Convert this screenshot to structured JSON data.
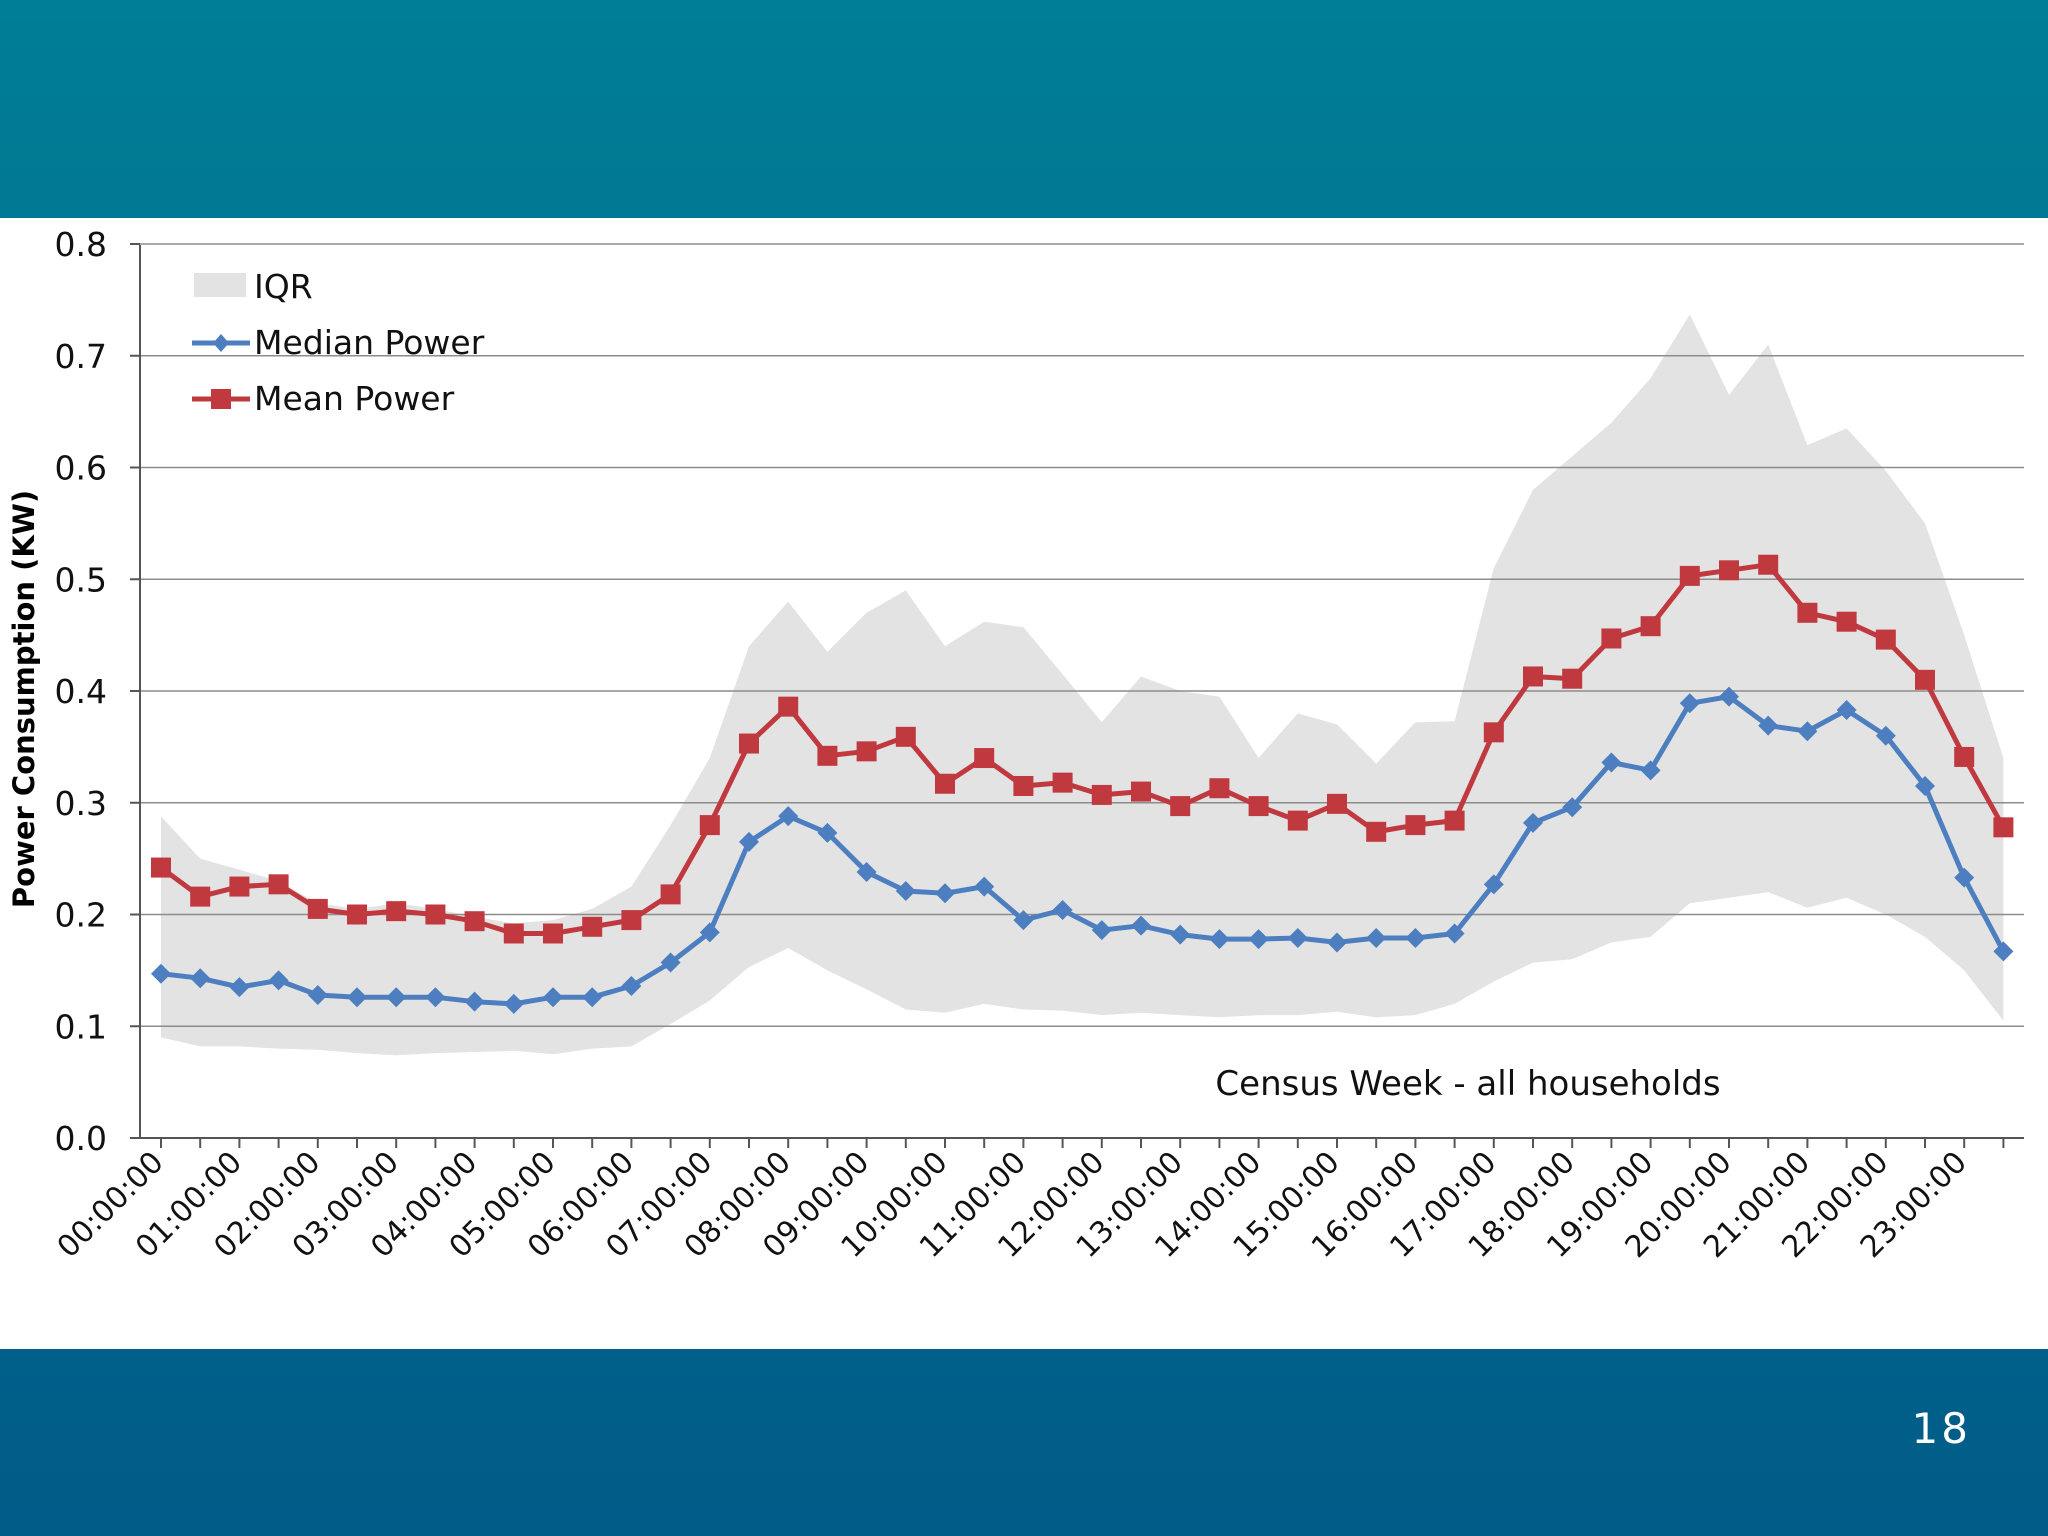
{
  "slide": {
    "number": "18"
  },
  "colors": {
    "top_band": "#007e97",
    "bottom_band": "#005c87",
    "median": "#4d7ebf",
    "mean": "#c0393f",
    "iqr": "#e3e3e3",
    "grid": "#8c8c8c"
  },
  "chart_data": {
    "type": "line",
    "title": "",
    "annotation": "Census Week - all households",
    "xlabel": "",
    "ylabel": "Power Consumption (KW)",
    "ylim": [
      0,
      0.8
    ],
    "y_ticks": [
      "0.0",
      "0.1",
      "0.2",
      "0.3",
      "0.4",
      "0.5",
      "0.6",
      "0.7",
      "0.8"
    ],
    "x_tick_labels": [
      "00:00:00",
      "01:00:00",
      "02:00:00",
      "03:00:00",
      "04:00:00",
      "05:00:00",
      "06:00:00",
      "07:00:00",
      "08:00:00",
      "09:00:00",
      "10:00:00",
      "11:00:00",
      "12:00:00",
      "13:00:00",
      "14:00:00",
      "15:00:00",
      "16:00:00",
      "17:00:00",
      "18:00:00",
      "19:00:00",
      "20:00:00",
      "21:00:00",
      "22:00:00",
      "23:00:00"
    ],
    "x_step_hours": 0.5,
    "legend": [
      "IQR",
      "Median Power",
      "Mean Power"
    ],
    "series": [
      {
        "name": "Median Power",
        "values": [
          0.147,
          0.143,
          0.135,
          0.141,
          0.128,
          0.126,
          0.126,
          0.126,
          0.122,
          0.12,
          0.126,
          0.126,
          0.136,
          0.157,
          0.184,
          0.265,
          0.288,
          0.273,
          0.238,
          0.221,
          0.219,
          0.225,
          0.195,
          0.204,
          0.186,
          0.19,
          0.182,
          0.178,
          0.178,
          0.179,
          0.175,
          0.179,
          0.179,
          0.183,
          0.227,
          0.282,
          0.296,
          0.336,
          0.329,
          0.389,
          0.395,
          0.369,
          0.364,
          0.383,
          0.36,
          0.315,
          0.233,
          0.167
        ]
      },
      {
        "name": "Mean Power",
        "values": [
          0.242,
          0.216,
          0.225,
          0.227,
          0.205,
          0.2,
          0.203,
          0.2,
          0.194,
          0.183,
          0.183,
          0.189,
          0.195,
          0.218,
          0.28,
          0.353,
          0.386,
          0.342,
          0.346,
          0.359,
          0.317,
          0.34,
          0.315,
          0.318,
          0.307,
          0.31,
          0.297,
          0.313,
          0.297,
          0.284,
          0.299,
          0.274,
          0.28,
          0.284,
          0.363,
          0.413,
          0.411,
          0.447,
          0.458,
          0.503,
          0.508,
          0.513,
          0.47,
          0.462,
          0.446,
          0.41,
          0.341,
          0.278
        ]
      },
      {
        "name": "IQR upper",
        "values": [
          0.288,
          0.25,
          0.24,
          0.23,
          0.21,
          0.205,
          0.21,
          0.205,
          0.198,
          0.192,
          0.195,
          0.205,
          0.225,
          0.28,
          0.34,
          0.44,
          0.48,
          0.435,
          0.47,
          0.49,
          0.44,
          0.462,
          0.457,
          0.415,
          0.372,
          0.413,
          0.4,
          0.395,
          0.34,
          0.38,
          0.37,
          0.335,
          0.372,
          0.373,
          0.51,
          0.58,
          0.61,
          0.64,
          0.68,
          0.737,
          0.665,
          0.71,
          0.62,
          0.635,
          0.597,
          0.55,
          0.45,
          0.34
        ]
      },
      {
        "name": "IQR lower",
        "values": [
          0.09,
          0.082,
          0.082,
          0.08,
          0.079,
          0.076,
          0.074,
          0.076,
          0.077,
          0.078,
          0.075,
          0.08,
          0.082,
          0.102,
          0.123,
          0.153,
          0.17,
          0.15,
          0.133,
          0.115,
          0.112,
          0.12,
          0.115,
          0.114,
          0.11,
          0.112,
          0.11,
          0.108,
          0.11,
          0.11,
          0.113,
          0.108,
          0.11,
          0.12,
          0.14,
          0.157,
          0.16,
          0.175,
          0.18,
          0.21,
          0.215,
          0.22,
          0.206,
          0.215,
          0.2,
          0.18,
          0.15,
          0.105
        ]
      }
    ]
  }
}
